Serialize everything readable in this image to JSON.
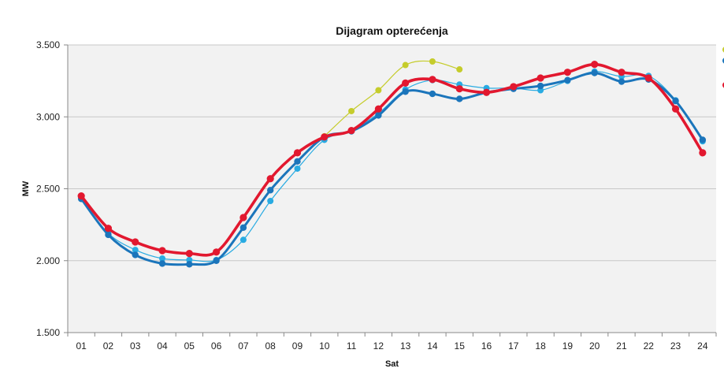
{
  "chart_data": {
    "type": "line",
    "title": "Dijagram opterećenja",
    "xlabel": "Sat",
    "ylabel": "MW",
    "ylim": [
      1500,
      3500
    ],
    "yticks": [
      1500,
      2000,
      2500,
      3000,
      3500
    ],
    "ytick_labels": [
      "1.500",
      "2.000",
      "2.500",
      "3.000",
      "3.500"
    ],
    "categories": [
      "01",
      "02",
      "03",
      "04",
      "05",
      "06",
      "07",
      "08",
      "09",
      "10",
      "11",
      "12",
      "13",
      "14",
      "15",
      "16",
      "17",
      "18",
      "19",
      "20",
      "21",
      "22",
      "23",
      "24"
    ],
    "grid": true,
    "legend": "right (cut off)",
    "series": [
      {
        "color": "#c5cc2b",
        "values": [
          null,
          null,
          null,
          null,
          null,
          null,
          null,
          null,
          null,
          2865,
          3040,
          3185,
          3360,
          3385,
          3330,
          null,
          null,
          null,
          null,
          null,
          null,
          null,
          null,
          null
        ]
      },
      {
        "color": "#29abe2",
        "values": [
          2430,
          2190,
          2075,
          2015,
          2005,
          2005,
          2145,
          2415,
          2640,
          2840,
          2905,
          3025,
          3190,
          3255,
          3225,
          3200,
          3200,
          3185,
          3250,
          3315,
          3280,
          3285,
          3115,
          2830
        ]
      },
      {
        "color": "#1b75bb",
        "values": [
          2430,
          2180,
          2040,
          1980,
          1975,
          2000,
          2230,
          2490,
          2690,
          2860,
          2900,
          3010,
          3175,
          3160,
          3125,
          3170,
          3195,
          3215,
          3255,
          3305,
          3245,
          3260,
          3110,
          2840
        ]
      },
      {
        "color": "#e2182f",
        "values": [
          2450,
          2225,
          2130,
          2070,
          2050,
          2060,
          2300,
          2570,
          2750,
          2860,
          2905,
          3055,
          3235,
          3260,
          3195,
          3170,
          3210,
          3270,
          3310,
          3365,
          3310,
          3270,
          3055,
          2750
        ]
      }
    ]
  }
}
